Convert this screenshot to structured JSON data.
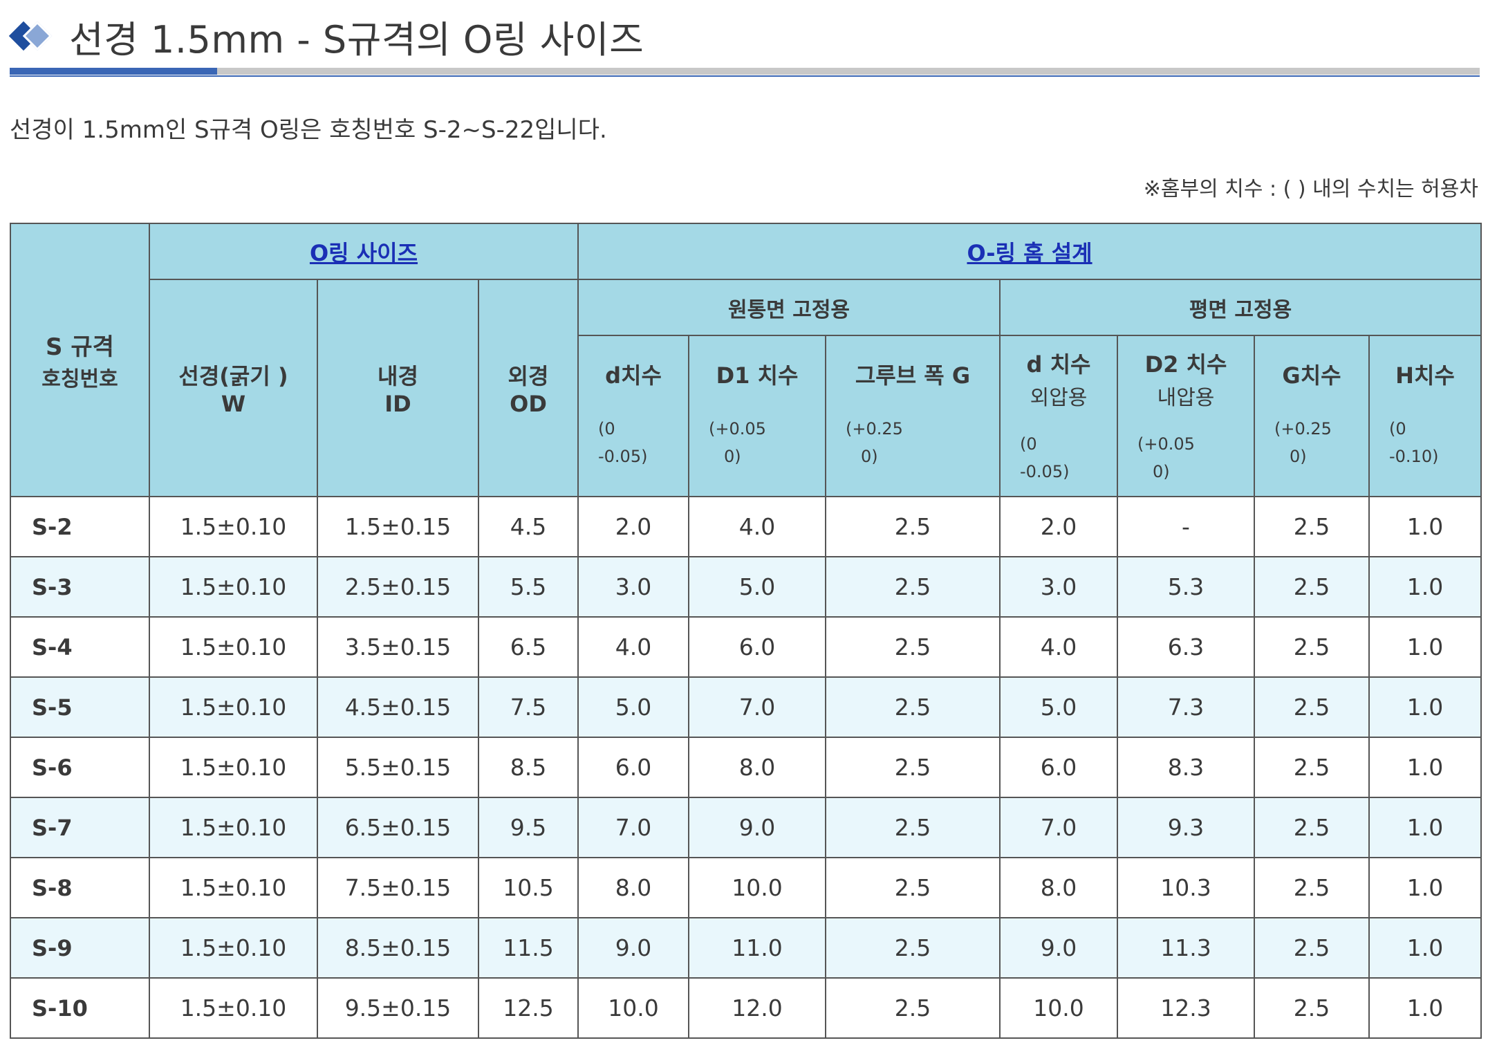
{
  "header": {
    "title": "선경 1.5mm - S규격의 O링 사이즈",
    "intro": "선경이 1.5mm인 S규격 O링은 호칭번호 S-2~S-22입니다.",
    "note": "※홈부의 치수 : ( ) 내의 수치는 허용차",
    "icon": "diamond-bullet-icon",
    "accent_color": "#3a66b5"
  },
  "table": {
    "header_bg": "#a4d9e6",
    "alt_row_bg": "#e9f7fc",
    "code_header": {
      "line1": "S 규격",
      "line2": "호칭번호"
    },
    "group_oring": "O링 사이즈",
    "group_groove": "O-링 홈 설계",
    "sub_cylinder": "원통면 고정용",
    "sub_flat": "평면 고정용",
    "col_w": {
      "line1": "선경(굵기 )",
      "line2": "W"
    },
    "col_id": {
      "line1": "내경",
      "line2": "ID"
    },
    "col_od": {
      "line1": "외경",
      "line2": "OD"
    },
    "col_d": {
      "label": "d치수",
      "tol1": "(0",
      "tol2": "-0.05)"
    },
    "col_d1": {
      "label": "D1 치수",
      "tol1": "(+0.05",
      "tol2": "0)"
    },
    "col_g1": {
      "label": "그루브 폭 G",
      "tol1": "(+0.25",
      "tol2": "0)"
    },
    "col_fd": {
      "label": "d 치수",
      "sub": "외압용",
      "tol1": "(0",
      "tol2": "-0.05)"
    },
    "col_fd2": {
      "label": "D2 치수",
      "sub": "내압용",
      "tol1": "(+0.05",
      "tol2": "0)"
    },
    "col_g2": {
      "label": "G치수",
      "tol1": "(+0.25",
      "tol2": "0)"
    },
    "col_h": {
      "label": "H치수",
      "tol1": "(0",
      "tol2": "-0.10)"
    },
    "rows": [
      [
        "S-2",
        "1.5±0.10",
        "1.5±0.15",
        "4.5",
        "2.0",
        "4.0",
        "2.5",
        "2.0",
        "-",
        "2.5",
        "1.0"
      ],
      [
        "S-3",
        "1.5±0.10",
        "2.5±0.15",
        "5.5",
        "3.0",
        "5.0",
        "2.5",
        "3.0",
        "5.3",
        "2.5",
        "1.0"
      ],
      [
        "S-4",
        "1.5±0.10",
        "3.5±0.15",
        "6.5",
        "4.0",
        "6.0",
        "2.5",
        "4.0",
        "6.3",
        "2.5",
        "1.0"
      ],
      [
        "S-5",
        "1.5±0.10",
        "4.5±0.15",
        "7.5",
        "5.0",
        "7.0",
        "2.5",
        "5.0",
        "7.3",
        "2.5",
        "1.0"
      ],
      [
        "S-6",
        "1.5±0.10",
        "5.5±0.15",
        "8.5",
        "6.0",
        "8.0",
        "2.5",
        "6.0",
        "8.3",
        "2.5",
        "1.0"
      ],
      [
        "S-7",
        "1.5±0.10",
        "6.5±0.15",
        "9.5",
        "7.0",
        "9.0",
        "2.5",
        "7.0",
        "9.3",
        "2.5",
        "1.0"
      ],
      [
        "S-8",
        "1.5±0.10",
        "7.5±0.15",
        "10.5",
        "8.0",
        "10.0",
        "2.5",
        "8.0",
        "10.3",
        "2.5",
        "1.0"
      ],
      [
        "S-9",
        "1.5±0.10",
        "8.5±0.15",
        "11.5",
        "9.0",
        "11.0",
        "2.5",
        "9.0",
        "11.3",
        "2.5",
        "1.0"
      ],
      [
        "S-10",
        "1.5±0.10",
        "9.5±0.15",
        "12.5",
        "10.0",
        "12.0",
        "2.5",
        "10.0",
        "12.3",
        "2.5",
        "1.0"
      ]
    ]
  }
}
